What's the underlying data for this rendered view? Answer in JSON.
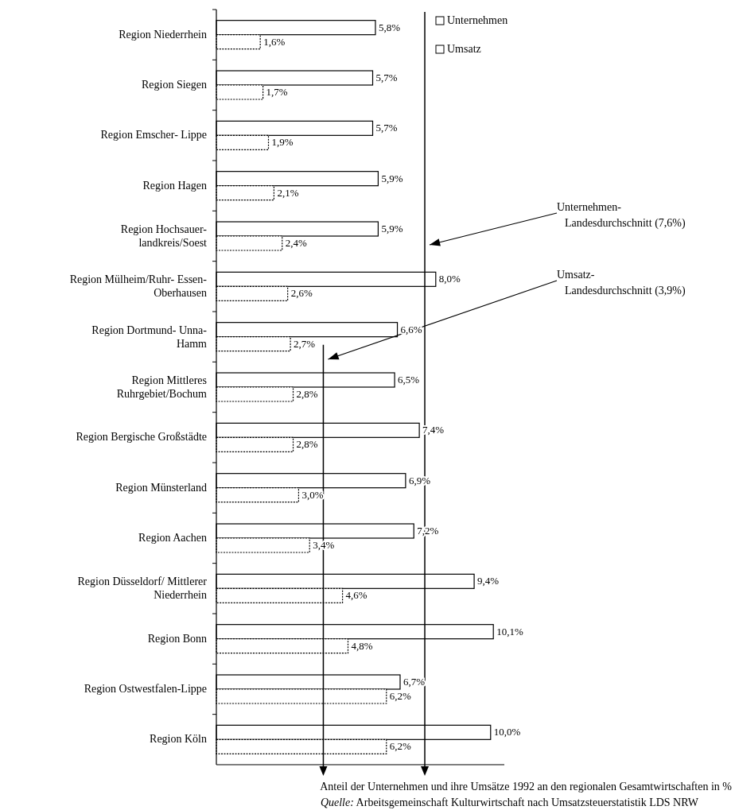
{
  "chart_data": {
    "type": "bar",
    "orientation": "horizontal",
    "categories": [
      "Region Niederrhein",
      "Region Siegen",
      "Region Emscher- Lippe",
      "Region Hagen",
      "Region Hochsauer-\nlandkreis/Soest",
      "Region Mülheim/Ruhr- Essen-\nOberhausen",
      "Region Dortmund- Unna-\nHamm",
      "Region Mittleres\nRuhrgebiet/Bochum",
      "Region Bergische Großstädte",
      "Region Münsterland",
      "Region Aachen",
      "Region Düsseldorf/ Mittlerer\nNiederrhein",
      "Region Bonn",
      "Region Ostwestfalen-Lippe",
      "Region Köln"
    ],
    "series": [
      {
        "name": "Unternehmen",
        "color": "#ffffff",
        "values": [
          5.8,
          5.7,
          5.7,
          5.9,
          5.9,
          8.0,
          6.6,
          6.5,
          7.4,
          6.9,
          7.2,
          9.4,
          10.1,
          6.7,
          10.0
        ],
        "value_labels": [
          "5,8%",
          "5,7%",
          "5,7%",
          "5,9%",
          "5,9%",
          "8,0%",
          "6,6%",
          "6,5%",
          "7,4%",
          "6,9%",
          "7,2%",
          "9,4%",
          "10,1%",
          "6,7%",
          "10,0%"
        ]
      },
      {
        "name": "Umsatz",
        "color": "#ffffff",
        "values": [
          1.6,
          1.7,
          1.9,
          2.1,
          2.4,
          2.6,
          2.7,
          2.8,
          2.8,
          3.0,
          3.4,
          4.6,
          4.8,
          6.2,
          6.2
        ],
        "value_labels": [
          "1,6%",
          "1,7%",
          "1,9%",
          "2,1%",
          "2,4%",
          "2,6%",
          "2,7%",
          "2,8%",
          "2,8%",
          "3,0%",
          "3,4%",
          "4,6%",
          "4,8%",
          "6,2%",
          "6,2%"
        ]
      }
    ],
    "xlim": [
      0,
      10.5
    ],
    "tick_labels": "y",
    "legend": "top right",
    "ref_lines": [
      {
        "axis": "x",
        "value": 7.6,
        "label": "Unternehmen-\nLandesdurchschnitt (7,6%)"
      },
      {
        "axis": "x",
        "value": 3.9,
        "label": "Umsatz-\nLandesdurchschnitt (3,9%)"
      }
    ],
    "xlabel": "Anteil der Unternehmen und ihre Umsätze 1992 an den regionalen Gesamtwirtschaften in %",
    "annotations": [
      "Quelle: Arbeitsgemeinschaft Kulturwirtschaft nach Umsatzsteuerstatistik LDS NRW"
    ]
  }
}
